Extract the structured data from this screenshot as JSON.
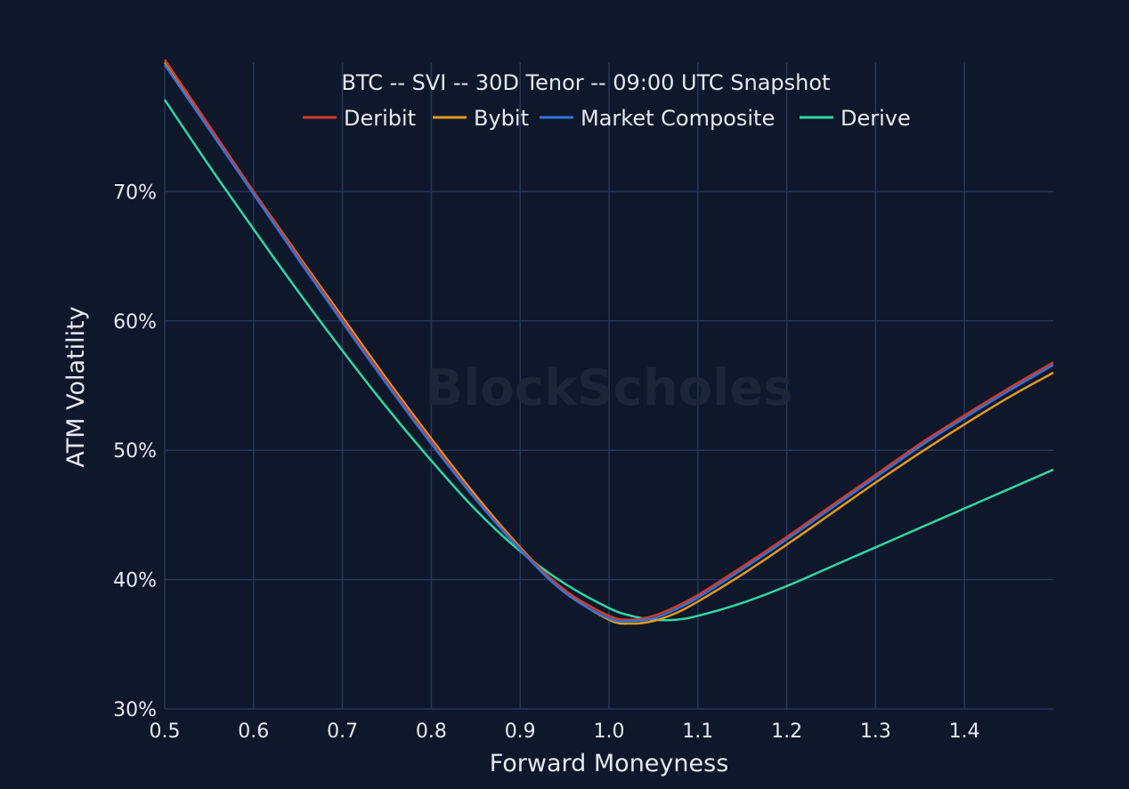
{
  "chart_data": {
    "type": "line",
    "title": "BTC -- SVI -- 30D Tenor -- 09:00 UTC Snapshot",
    "xlabel": "Forward Moneyness",
    "ylabel": "ATM Volatility",
    "watermark": "BlockScholes",
    "xlim": [
      0.5,
      1.5
    ],
    "ylim": [
      30,
      80
    ],
    "xticks": [
      0.5,
      0.6,
      0.7,
      0.8,
      0.9,
      1.0,
      1.1,
      1.2,
      1.3,
      1.4
    ],
    "xtick_labels": [
      "0.5",
      "0.6",
      "0.7",
      "0.8",
      "0.9",
      "1.0",
      "1.1",
      "1.2",
      "1.3",
      "1.4"
    ],
    "yticks": [
      30,
      40,
      50,
      60,
      70
    ],
    "ytick_labels": [
      "30%",
      "40%",
      "50%",
      "60%",
      "70%"
    ],
    "grid": true,
    "legend_position": "top-center",
    "background_color": "#0f172a",
    "grid_color": "#24365a",
    "text_color": "#e5e9f0",
    "x": [
      0.5,
      0.55,
      0.6,
      0.65,
      0.7,
      0.75,
      0.8,
      0.85,
      0.9,
      0.95,
      1.0,
      1.025,
      1.05,
      1.075,
      1.1,
      1.15,
      1.2,
      1.25,
      1.3,
      1.35,
      1.4,
      1.45,
      1.5
    ],
    "series": [
      {
        "name": "Deribit",
        "color": "#d43a2a",
        "values": [
          80.2,
          75.1,
          70.0,
          65.0,
          60.1,
          55.3,
          50.7,
          46.3,
          42.4,
          39.2,
          37.2,
          36.9,
          37.2,
          37.9,
          38.8,
          41.0,
          43.3,
          45.7,
          48.1,
          50.5,
          52.7,
          54.8,
          56.8
        ]
      },
      {
        "name": "Bybit",
        "color": "#e29a1e",
        "values": [
          80.0,
          75.0,
          70.0,
          65.1,
          60.3,
          55.5,
          50.9,
          46.5,
          42.5,
          39.1,
          36.9,
          36.6,
          36.8,
          37.4,
          38.3,
          40.4,
          42.7,
          45.1,
          47.5,
          49.8,
          52.0,
          54.1,
          56.0
        ]
      },
      {
        "name": "Market Composite",
        "color": "#2f73d8",
        "values": [
          79.8,
          74.8,
          69.8,
          64.8,
          59.9,
          55.1,
          50.5,
          46.2,
          42.3,
          39.0,
          37.0,
          36.8,
          37.0,
          37.7,
          38.6,
          40.8,
          43.1,
          45.5,
          47.9,
          50.3,
          52.5,
          54.6,
          56.6
        ]
      },
      {
        "name": "Derive",
        "color": "#2ed8a3",
        "values": [
          77.1,
          72.0,
          67.1,
          62.3,
          57.7,
          53.3,
          49.2,
          45.4,
          42.2,
          39.7,
          37.8,
          37.2,
          36.9,
          36.9,
          37.2,
          38.2,
          39.5,
          41.0,
          42.5,
          44.0,
          45.5,
          47.0,
          48.5
        ]
      }
    ]
  }
}
